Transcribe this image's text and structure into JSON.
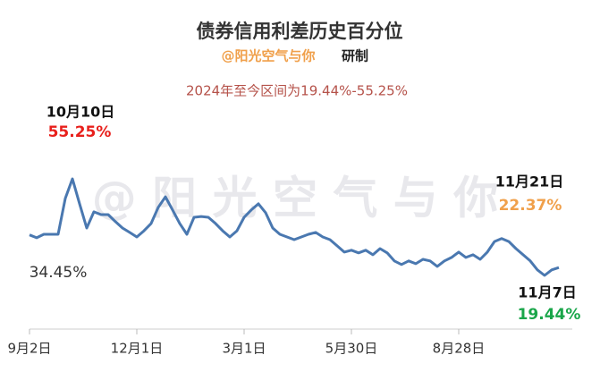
{
  "chart_data": {
    "type": "line",
    "title": "债券信用利差历史百分位",
    "subtitle": "@阳光空气与你",
    "subtitle_suffix": "研制",
    "note": "2024年至今区间为19.44%-55.25%",
    "watermark": "@ 阳 光 空 气 与 你",
    "annotations": [
      "10月10日",
      "11月21日",
      "11月7日"
    ],
    "categories": [
      "9月2日",
      null,
      null,
      null,
      null,
      null,
      null,
      null,
      null,
      null,
      null,
      null,
      null,
      null,
      null,
      "12月1日",
      null,
      null,
      null,
      null,
      null,
      null,
      null,
      null,
      null,
      null,
      null,
      null,
      null,
      null,
      "3月1日",
      null,
      null,
      null,
      null,
      null,
      null,
      null,
      null,
      null,
      null,
      null,
      null,
      null,
      null,
      "5月30日",
      null,
      null,
      null,
      null,
      null,
      null,
      null,
      null,
      null,
      null,
      null,
      null,
      null,
      null,
      "8月28日",
      null,
      null,
      null,
      null,
      null,
      null,
      null,
      null,
      null,
      null,
      null,
      null,
      null,
      null
    ],
    "values": [
      34.45,
      33.4,
      34.7,
      34.7,
      34.7,
      48,
      55.25,
      46,
      37,
      43,
      42,
      42,
      39.4,
      37,
      35.4,
      33.7,
      36,
      38.7,
      44.7,
      48.6,
      43.7,
      38.7,
      34.7,
      41,
      41.3,
      41,
      38.7,
      36,
      33.7,
      36,
      41,
      43.7,
      46,
      42.7,
      37,
      34.7,
      33.7,
      32.7,
      33.7,
      34.7,
      35.4,
      33.7,
      32.7,
      30.4,
      28.1,
      28.8,
      27.8,
      28.8,
      27.1,
      29.4,
      27.8,
      24.8,
      23.5,
      24.8,
      23.8,
      25.4,
      24.8,
      22.8,
      24.8,
      26.1,
      28.1,
      26.1,
      27.1,
      25.4,
      28.1,
      32,
      33.1,
      32,
      29.4,
      27.1,
      24.8,
      21.5,
      19.44,
      21.5,
      22.37
    ],
    "value_labels": [
      "34.45%",
      null,
      null,
      null,
      null,
      null,
      "55.25%",
      null,
      null,
      null,
      null,
      null,
      null,
      null,
      null,
      null,
      null,
      null,
      null,
      null,
      null,
      null,
      null,
      null,
      null,
      null,
      null,
      null,
      null,
      null,
      null,
      null,
      null,
      null,
      null,
      null,
      null,
      null,
      null,
      null,
      null,
      null,
      null,
      null,
      null,
      null,
      null,
      null,
      null,
      null,
      null,
      null,
      null,
      null,
      null,
      null,
      null,
      null,
      null,
      null,
      null,
      null,
      null,
      null,
      null,
      null,
      null,
      null,
      null,
      null,
      null,
      null,
      "19.44%",
      null,
      "22.37%"
    ],
    "color": "#4a78b0"
  }
}
